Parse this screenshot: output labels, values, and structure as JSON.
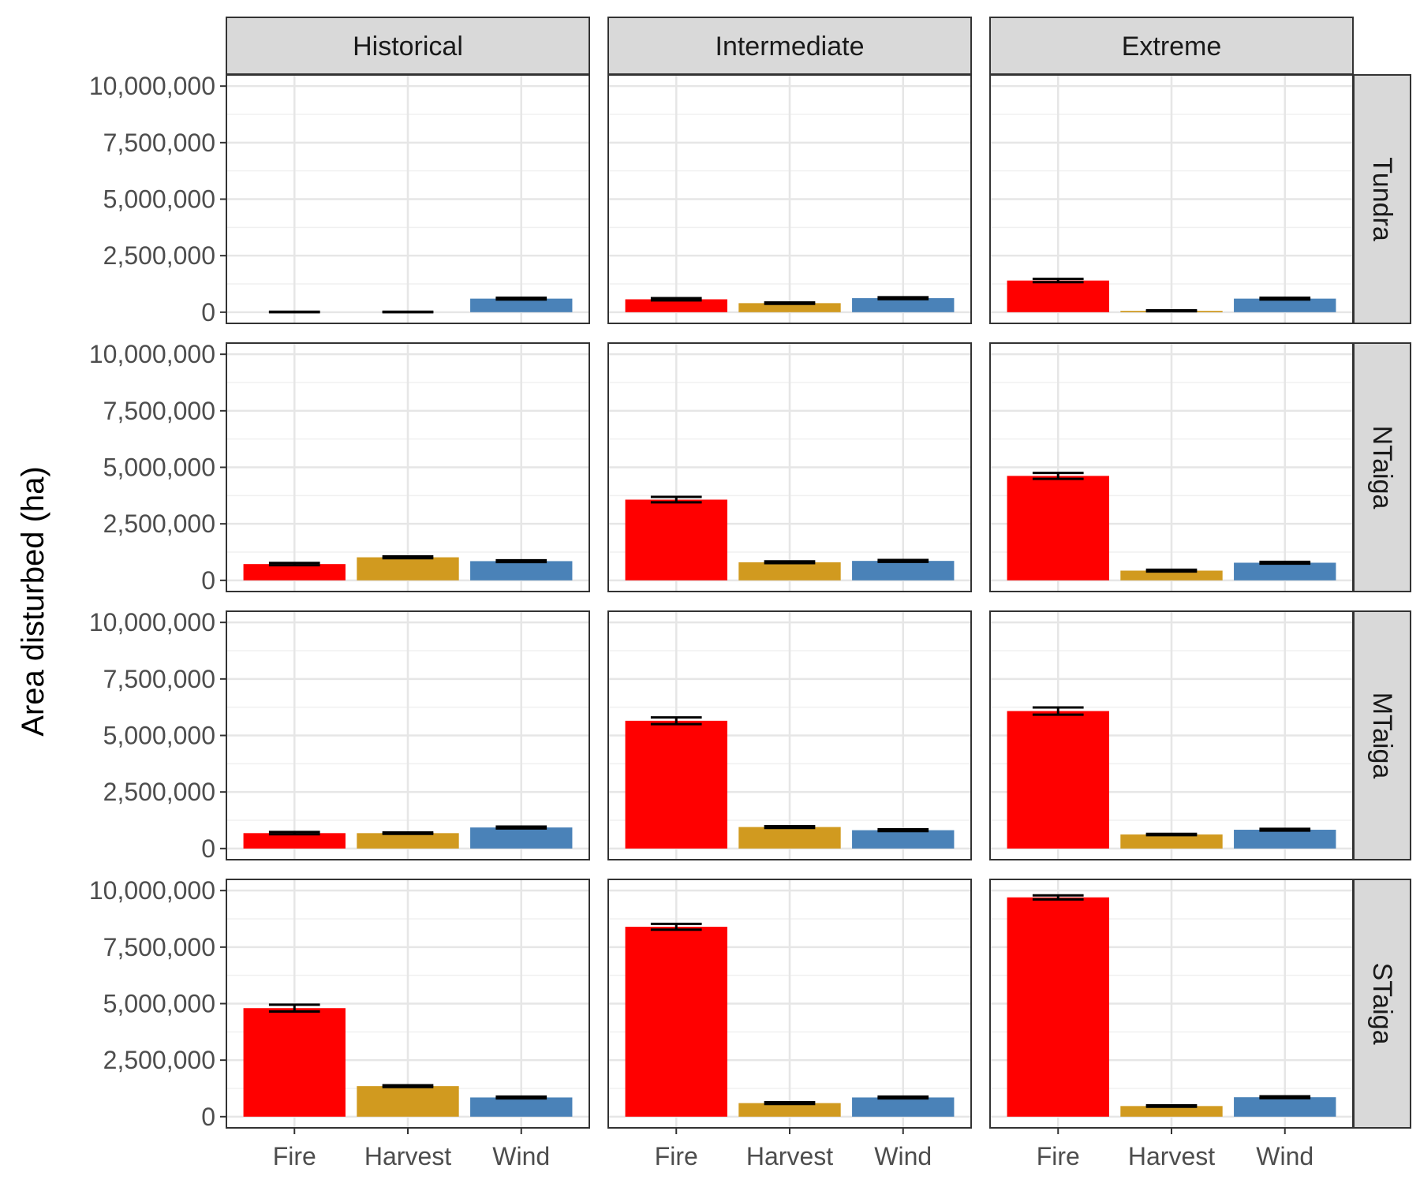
{
  "chart_data": {
    "type": "bar",
    "layout": "facet-grid",
    "ylabel": "Area disturbed (ha)",
    "xlabel": "",
    "ylim": [
      0,
      10000000
    ],
    "yticks": [
      0,
      2500000,
      5000000,
      7500000,
      10000000
    ],
    "ytick_labels": [
      "0",
      "2,500,000",
      "5,000,000",
      "7,500,000",
      "10,000,000"
    ],
    "grid": true,
    "categories": [
      "Fire",
      "Harvest",
      "Wind"
    ],
    "category_colors": {
      "Fire": "#ff0000",
      "Harvest": "#d19a1f",
      "Wind": "#4a82b8"
    },
    "columns": [
      "Historical",
      "Intermediate",
      "Extreme"
    ],
    "rows": [
      "Tundra",
      "NTaiga",
      "MTaiga",
      "STaiga"
    ],
    "panels": [
      {
        "row": "Tundra",
        "column": "Historical",
        "values": [
          0,
          0,
          600000
        ],
        "errors": [
          20000,
          20000,
          40000
        ]
      },
      {
        "row": "Tundra",
        "column": "Intermediate",
        "values": [
          570000,
          400000,
          620000
        ],
        "errors": [
          50000,
          30000,
          40000
        ]
      },
      {
        "row": "Tundra",
        "column": "Extreme",
        "values": [
          1400000,
          60000,
          600000
        ],
        "errors": [
          70000,
          20000,
          40000
        ]
      },
      {
        "row": "NTaiga",
        "column": "Historical",
        "values": [
          720000,
          1020000,
          850000
        ],
        "errors": [
          50000,
          40000,
          40000
        ]
      },
      {
        "row": "NTaiga",
        "column": "Intermediate",
        "values": [
          3570000,
          800000,
          860000
        ],
        "errors": [
          120000,
          40000,
          40000
        ]
      },
      {
        "row": "NTaiga",
        "column": "Extreme",
        "values": [
          4620000,
          430000,
          780000
        ],
        "errors": [
          130000,
          40000,
          40000
        ]
      },
      {
        "row": "MTaiga",
        "column": "Historical",
        "values": [
          680000,
          680000,
          930000
        ],
        "errors": [
          50000,
          30000,
          40000
        ]
      },
      {
        "row": "MTaiga",
        "column": "Intermediate",
        "values": [
          5650000,
          950000,
          810000
        ],
        "errors": [
          150000,
          40000,
          40000
        ]
      },
      {
        "row": "MTaiga",
        "column": "Extreme",
        "values": [
          6080000,
          620000,
          830000
        ],
        "errors": [
          160000,
          30000,
          40000
        ]
      },
      {
        "row": "STaiga",
        "column": "Historical",
        "values": [
          4800000,
          1350000,
          850000
        ],
        "errors": [
          150000,
          40000,
          40000
        ]
      },
      {
        "row": "STaiga",
        "column": "Intermediate",
        "values": [
          8400000,
          600000,
          850000
        ],
        "errors": [
          130000,
          40000,
          40000
        ]
      },
      {
        "row": "STaiga",
        "column": "Extreme",
        "values": [
          9700000,
          470000,
          860000
        ],
        "errors": [
          90000,
          30000,
          40000
        ]
      }
    ]
  }
}
